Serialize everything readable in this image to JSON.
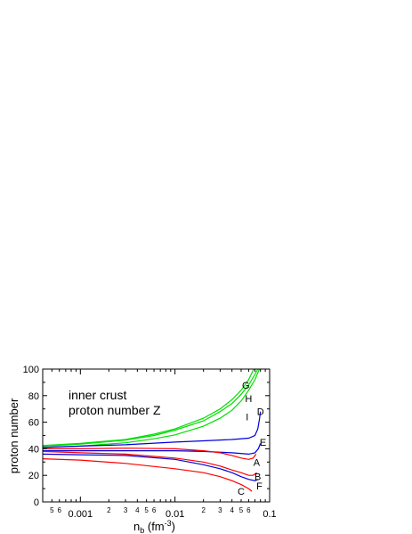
{
  "chart_data": {
    "type": "line",
    "title": "",
    "xlabel_main": "n",
    "xlabel_sub": "b",
    "xlabel_unit_open": " (fm",
    "xlabel_unit_exp": "-3",
    "xlabel_unit_close": ")",
    "ylabel": "proton number",
    "xscale": "log",
    "xlim": [
      0.0004,
      0.1
    ],
    "ylim": [
      0,
      100
    ],
    "grid": false,
    "annotations": [
      "inner crust",
      "proton number Z"
    ],
    "x_major_ticks": [
      {
        "value": 0.001,
        "label": "0.001"
      },
      {
        "value": 0.01,
        "label": "0.01"
      },
      {
        "value": 0.1,
        "label": "0.1"
      }
    ],
    "x_minor_labels": [
      {
        "value": 0.0005,
        "label": "5"
      },
      {
        "value": 0.0006,
        "label": "6"
      },
      {
        "value": 0.002,
        "label": "2"
      },
      {
        "value": 0.003,
        "label": "3"
      },
      {
        "value": 0.004,
        "label": "4"
      },
      {
        "value": 0.005,
        "label": "5"
      },
      {
        "value": 0.006,
        "label": "6"
      },
      {
        "value": 0.02,
        "label": "2"
      },
      {
        "value": 0.03,
        "label": "3"
      },
      {
        "value": 0.04,
        "label": "4"
      },
      {
        "value": 0.05,
        "label": "5"
      },
      {
        "value": 0.06,
        "label": "6"
      }
    ],
    "y_ticks": [
      {
        "value": 0,
        "label": "0"
      },
      {
        "value": 20,
        "label": "20"
      },
      {
        "value": 40,
        "label": "40"
      },
      {
        "value": 60,
        "label": "60"
      },
      {
        "value": 80,
        "label": "80"
      },
      {
        "value": 100,
        "label": "100"
      }
    ],
    "colors": {
      "red": "#ff0000",
      "blue": "#0000dd",
      "green": "#00dd00"
    },
    "series": [
      {
        "label": "G",
        "color": "green",
        "label_at": [
          0.056,
          88
        ],
        "points": [
          [
            0.0004,
            42.5
          ],
          [
            0.001,
            44
          ],
          [
            0.003,
            47
          ],
          [
            0.006,
            51
          ],
          [
            0.01,
            55
          ],
          [
            0.02,
            63
          ],
          [
            0.03,
            70
          ],
          [
            0.04,
            77
          ],
          [
            0.05,
            84
          ],
          [
            0.06,
            92
          ],
          [
            0.068,
            100
          ]
        ]
      },
      {
        "label": "H",
        "color": "green",
        "label_at": [
          0.06,
          78
        ],
        "points": [
          [
            0.0004,
            42
          ],
          [
            0.001,
            43.5
          ],
          [
            0.003,
            46.5
          ],
          [
            0.006,
            50
          ],
          [
            0.01,
            54
          ],
          [
            0.02,
            61
          ],
          [
            0.03,
            68
          ],
          [
            0.04,
            74
          ],
          [
            0.05,
            81
          ],
          [
            0.06,
            88
          ],
          [
            0.07,
            96
          ],
          [
            0.075,
            100
          ]
        ]
      },
      {
        "label": "I",
        "color": "green",
        "label_at": [
          0.058,
          64
        ],
        "points": [
          [
            0.0004,
            41
          ],
          [
            0.001,
            42
          ],
          [
            0.003,
            44.5
          ],
          [
            0.006,
            47.5
          ],
          [
            0.01,
            50.5
          ],
          [
            0.02,
            57
          ],
          [
            0.03,
            63
          ],
          [
            0.04,
            69
          ],
          [
            0.05,
            76
          ],
          [
            0.06,
            84
          ],
          [
            0.07,
            92
          ],
          [
            0.078,
            100
          ]
        ]
      },
      {
        "label": "D",
        "color": "blue",
        "label_at": [
          0.08,
          68
        ],
        "points": [
          [
            0.0004,
            41
          ],
          [
            0.001,
            42
          ],
          [
            0.003,
            43
          ],
          [
            0.01,
            45
          ],
          [
            0.02,
            46
          ],
          [
            0.04,
            47
          ],
          [
            0.06,
            48
          ],
          [
            0.07,
            50
          ],
          [
            0.075,
            55
          ],
          [
            0.078,
            62
          ],
          [
            0.08,
            68
          ]
        ]
      },
      {
        "label": "E",
        "color": "blue",
        "label_at": [
          0.085,
          45
        ],
        "points": [
          [
            0.0004,
            38.5
          ],
          [
            0.001,
            38.5
          ],
          [
            0.003,
            38.5
          ],
          [
            0.01,
            38.5
          ],
          [
            0.02,
            38
          ],
          [
            0.04,
            37
          ],
          [
            0.06,
            36
          ],
          [
            0.07,
            37
          ],
          [
            0.076,
            40
          ],
          [
            0.08,
            44
          ]
        ]
      },
      {
        "label": "A",
        "color": "red",
        "label_at": [
          0.073,
          30
        ],
        "points": [
          [
            0.0004,
            40
          ],
          [
            0.001,
            40
          ],
          [
            0.003,
            40.5
          ],
          [
            0.01,
            40
          ],
          [
            0.02,
            38.5
          ],
          [
            0.03,
            37
          ],
          [
            0.04,
            35
          ],
          [
            0.05,
            33
          ],
          [
            0.06,
            32
          ],
          [
            0.067,
            33
          ],
          [
            0.072,
            36
          ]
        ]
      },
      {
        "label": "B",
        "color": "red",
        "label_at": [
          0.075,
          19
        ],
        "points": [
          [
            0.0004,
            38
          ],
          [
            0.001,
            37
          ],
          [
            0.003,
            36
          ],
          [
            0.01,
            33
          ],
          [
            0.02,
            30
          ],
          [
            0.03,
            27
          ],
          [
            0.04,
            24
          ],
          [
            0.05,
            22
          ],
          [
            0.06,
            20
          ],
          [
            0.067,
            20
          ],
          [
            0.073,
            22
          ]
        ]
      },
      {
        "label": "F",
        "color": "blue",
        "label_at": [
          0.078,
          12
        ],
        "points": [
          [
            0.0004,
            36
          ],
          [
            0.001,
            35.5
          ],
          [
            0.003,
            35
          ],
          [
            0.01,
            32
          ],
          [
            0.02,
            28
          ],
          [
            0.03,
            25
          ],
          [
            0.04,
            22
          ],
          [
            0.05,
            19
          ],
          [
            0.06,
            17
          ],
          [
            0.07,
            16
          ],
          [
            0.076,
            17
          ]
        ]
      },
      {
        "label": "C",
        "color": "red",
        "label_at": [
          0.05,
          8
        ],
        "points": [
          [
            0.0004,
            32.5
          ],
          [
            0.001,
            31.5
          ],
          [
            0.003,
            29
          ],
          [
            0.01,
            25
          ],
          [
            0.02,
            22
          ],
          [
            0.03,
            19
          ],
          [
            0.04,
            16
          ],
          [
            0.05,
            13
          ],
          [
            0.06,
            10
          ],
          [
            0.065,
            8
          ]
        ]
      }
    ]
  }
}
